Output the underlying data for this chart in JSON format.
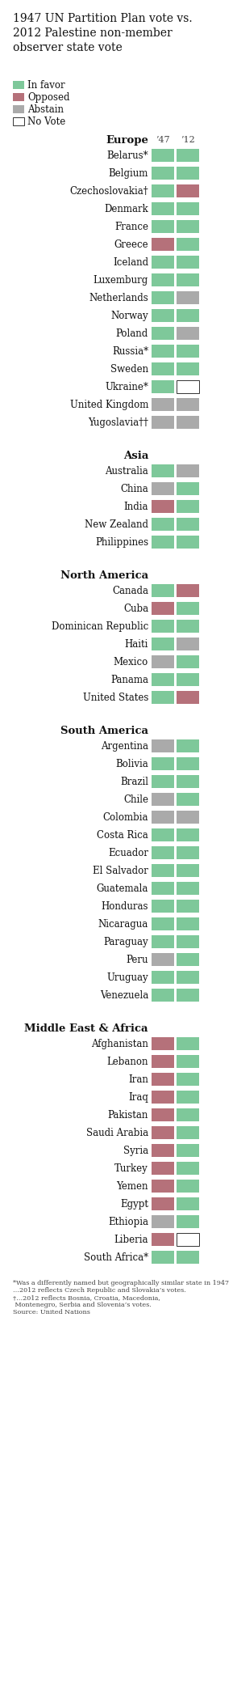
{
  "title": "1947 UN Partition Plan vote vs.\n2012 Palestine non-member\nobserver state vote",
  "colors": {
    "in_favor": "#7ec89a",
    "opposed": "#b5717a",
    "abstain": "#aaaaaa",
    "no_vote": "#ffffff",
    "no_vote_edge": "#333333"
  },
  "sections": [
    {
      "header": "Europe",
      "countries": [
        {
          "name": "Belarus*",
          "v47": "favor",
          "v12": "favor"
        },
        {
          "name": "Belgium",
          "v47": "favor",
          "v12": "favor"
        },
        {
          "name": "Czechoslovakia†",
          "v47": "favor",
          "v12": "opposed"
        },
        {
          "name": "Denmark",
          "v47": "favor",
          "v12": "favor"
        },
        {
          "name": "France",
          "v47": "favor",
          "v12": "favor"
        },
        {
          "name": "Greece",
          "v47": "opposed",
          "v12": "favor"
        },
        {
          "name": "Iceland",
          "v47": "favor",
          "v12": "favor"
        },
        {
          "name": "Luxemburg",
          "v47": "favor",
          "v12": "favor"
        },
        {
          "name": "Netherlands",
          "v47": "favor",
          "v12": "abstain"
        },
        {
          "name": "Norway",
          "v47": "favor",
          "v12": "favor"
        },
        {
          "name": "Poland",
          "v47": "favor",
          "v12": "abstain"
        },
        {
          "name": "Russia*",
          "v47": "favor",
          "v12": "favor"
        },
        {
          "name": "Sweden",
          "v47": "favor",
          "v12": "favor"
        },
        {
          "name": "Ukraine*",
          "v47": "favor",
          "v12": "no_vote"
        },
        {
          "name": "United Kingdom",
          "v47": "abstain",
          "v12": "abstain"
        },
        {
          "name": "Yugoslavia††",
          "v47": "abstain",
          "v12": "abstain"
        }
      ]
    },
    {
      "header": "Asia",
      "countries": [
        {
          "name": "Australia",
          "v47": "favor",
          "v12": "abstain"
        },
        {
          "name": "China",
          "v47": "abstain",
          "v12": "favor"
        },
        {
          "name": "India",
          "v47": "opposed",
          "v12": "favor"
        },
        {
          "name": "New Zealand",
          "v47": "favor",
          "v12": "favor"
        },
        {
          "name": "Philippines",
          "v47": "favor",
          "v12": "favor"
        }
      ]
    },
    {
      "header": "North America",
      "countries": [
        {
          "name": "Canada",
          "v47": "favor",
          "v12": "opposed"
        },
        {
          "name": "Cuba",
          "v47": "opposed",
          "v12": "favor"
        },
        {
          "name": "Dominican Republic",
          "v47": "favor",
          "v12": "favor"
        },
        {
          "name": "Haiti",
          "v47": "favor",
          "v12": "abstain"
        },
        {
          "name": "Mexico",
          "v47": "abstain",
          "v12": "favor"
        },
        {
          "name": "Panama",
          "v47": "favor",
          "v12": "favor"
        },
        {
          "name": "United States",
          "v47": "favor",
          "v12": "opposed"
        }
      ]
    },
    {
      "header": "South America",
      "countries": [
        {
          "name": "Argentina",
          "v47": "abstain",
          "v12": "favor"
        },
        {
          "name": "Bolivia",
          "v47": "favor",
          "v12": "favor"
        },
        {
          "name": "Brazil",
          "v47": "favor",
          "v12": "favor"
        },
        {
          "name": "Chile",
          "v47": "abstain",
          "v12": "favor"
        },
        {
          "name": "Colombia",
          "v47": "abstain",
          "v12": "abstain"
        },
        {
          "name": "Costa Rica",
          "v47": "favor",
          "v12": "favor"
        },
        {
          "name": "Ecuador",
          "v47": "favor",
          "v12": "favor"
        },
        {
          "name": "El Salvador",
          "v47": "favor",
          "v12": "favor"
        },
        {
          "name": "Guatemala",
          "v47": "favor",
          "v12": "favor"
        },
        {
          "name": "Honduras",
          "v47": "favor",
          "v12": "favor"
        },
        {
          "name": "Nicaragua",
          "v47": "favor",
          "v12": "favor"
        },
        {
          "name": "Paraguay",
          "v47": "favor",
          "v12": "favor"
        },
        {
          "name": "Peru",
          "v47": "abstain",
          "v12": "favor"
        },
        {
          "name": "Uruguay",
          "v47": "favor",
          "v12": "favor"
        },
        {
          "name": "Venezuela",
          "v47": "favor",
          "v12": "favor"
        }
      ]
    },
    {
      "header": "Middle East & Africa",
      "countries": [
        {
          "name": "Afghanistan",
          "v47": "opposed",
          "v12": "favor"
        },
        {
          "name": "Lebanon",
          "v47": "opposed",
          "v12": "favor"
        },
        {
          "name": "Iran",
          "v47": "opposed",
          "v12": "favor"
        },
        {
          "name": "Iraq",
          "v47": "opposed",
          "v12": "favor"
        },
        {
          "name": "Pakistan",
          "v47": "opposed",
          "v12": "favor"
        },
        {
          "name": "Saudi Arabia",
          "v47": "opposed",
          "v12": "favor"
        },
        {
          "name": "Syria",
          "v47": "opposed",
          "v12": "favor"
        },
        {
          "name": "Turkey",
          "v47": "opposed",
          "v12": "favor"
        },
        {
          "name": "Yemen",
          "v47": "opposed",
          "v12": "favor"
        },
        {
          "name": "Egypt",
          "v47": "opposed",
          "v12": "favor"
        },
        {
          "name": "Ethiopia",
          "v47": "abstain",
          "v12": "favor"
        },
        {
          "name": "Liberia",
          "v47": "opposed",
          "v12": "no_vote"
        },
        {
          "name": "South Africa*",
          "v47": "favor",
          "v12": "favor"
        }
      ]
    }
  ],
  "footnotes": "*Was a differently named but geographically similar state in 1947\n…2012 reflects Czech Republic and Slovakia’s votes.\n……2012 reflects Bosnia, Croatia, Macedonia, Montenegro, Serbia and Slovenia’s votes.\nSource: United Nations"
}
